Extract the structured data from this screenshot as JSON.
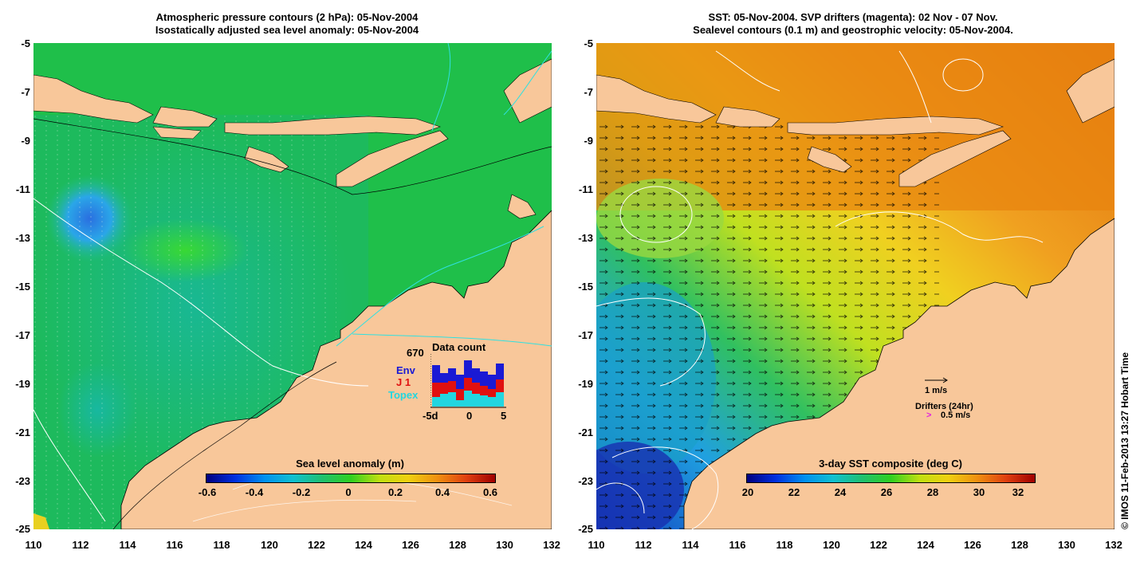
{
  "left_panel": {
    "title_line1": "Atmospheric pressure contours (2 hPa): 05-Nov-2004",
    "title_line2": "Isostatically adjusted sea level anomaly: 05-Nov-2004",
    "colorbar_label": "Sea level anomaly (m)",
    "colorbar_ticks": [
      "-0.6",
      "-0.4",
      "-0.2",
      "0",
      "0.2",
      "0.4",
      "0.6"
    ],
    "inset": {
      "total": "670",
      "title": "Data count",
      "legend": [
        {
          "label": "Env",
          "color": "#1a1ad4"
        },
        {
          "label": "J 1",
          "color": "#e01010"
        },
        {
          "label": "Topex",
          "color": "#22d6e0"
        }
      ],
      "x_ticks": [
        "-5d",
        "0",
        "5"
      ]
    }
  },
  "right_panel": {
    "title_line1": "SST: 05-Nov-2004. SVP drifters (magenta): 02 Nov - 07 Nov.",
    "title_line2": "Sealevel contours (0.1 m) and geostrophic velocity: 05-Nov-2004.",
    "colorbar_label": "3-day SST composite (deg C)",
    "colorbar_ticks": [
      "20",
      "22",
      "24",
      "26",
      "28",
      "30",
      "32"
    ],
    "velocity_scale_label": "1 m/s",
    "drifters_label": "Drifters (24hr)",
    "drifters_scale": "0.5 m/s"
  },
  "axes": {
    "y_ticks": [
      "-5",
      "-7",
      "-9",
      "-11",
      "-13",
      "-15",
      "-17",
      "-19",
      "-21",
      "-23",
      "-25"
    ],
    "x_ticks": [
      "110",
      "112",
      "114",
      "116",
      "118",
      "120",
      "122",
      "124",
      "126",
      "128",
      "130",
      "132"
    ]
  },
  "copyright": "© IMOS 11-Feb-2013 13:27 Hobart Time",
  "colors": {
    "land": "#f8c79a",
    "ocean_left": "#1fbf4a",
    "sst_warm": "#e8820f"
  }
}
